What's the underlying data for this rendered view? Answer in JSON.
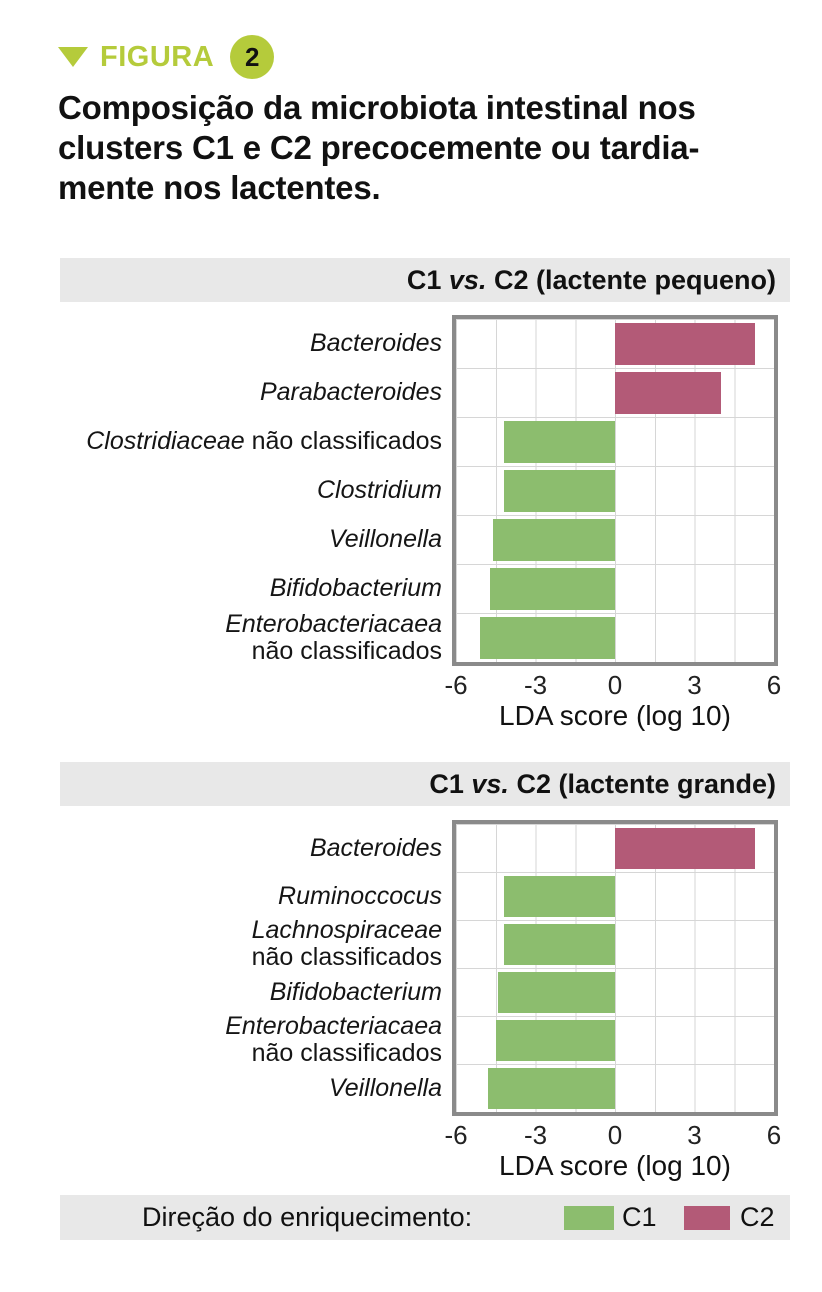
{
  "figure": {
    "kicker": "FIGURA",
    "number": "2",
    "title_lines": [
      "Composição da microbiota intestinal nos",
      "clusters C1 e C2 precocemente ou tardia-",
      "mente nos lactentes."
    ]
  },
  "colors": {
    "accent_lime": "#b5cb3b",
    "c1_green": "#8cbd6e",
    "c2_magenta": "#b35a77",
    "banner_gray": "#e8e8e8",
    "frame_gray": "#8a8a8a",
    "grid_gray": "#d6d6d6"
  },
  "legend": {
    "label": "Direção do enriquecimento:",
    "items": [
      {
        "label": "C1",
        "color": "#8cbd6e"
      },
      {
        "label": "C2",
        "color": "#b35a77"
      }
    ]
  },
  "chart_data": [
    {
      "type": "bar",
      "orientation": "horizontal",
      "title": "C1 vs. C2 (lactente pequeno)",
      "title_parts": [
        "C1 ",
        "vs.",
        " C2 (lactente pequeno)"
      ],
      "categories": [
        "Bacteroides",
        "Parabacteroides",
        "Clostridiaceae não classificados",
        "Clostridium",
        "Veillonella",
        "Bifidobacterium",
        "Enterobacteriacaea não classificados"
      ],
      "category_format": [
        {
          "italic": "Bacteroides",
          "regular": "",
          "two_line": false
        },
        {
          "italic": "Parabacteroides",
          "regular": "",
          "two_line": false
        },
        {
          "italic": "Clostridiaceae",
          "regular": " não classificados",
          "two_line": false
        },
        {
          "italic": "Clostridium",
          "regular": "",
          "two_line": false
        },
        {
          "italic": "Veillonella",
          "regular": "",
          "two_line": false
        },
        {
          "italic": "Bifidobacterium",
          "regular": "",
          "two_line": false
        },
        {
          "italic": "Enterobacteriacaea",
          "regular": "não classificados",
          "two_line": true
        }
      ],
      "values": [
        5.3,
        4.0,
        -4.2,
        -4.2,
        -4.6,
        -4.7,
        -5.1
      ],
      "groups": [
        "C2",
        "C2",
        "C1",
        "C1",
        "C1",
        "C1",
        "C1"
      ],
      "xlabel": "LDA score (log 10)",
      "xlim": [
        -6,
        6
      ],
      "xticks": [
        -6,
        -3,
        0,
        3,
        6
      ],
      "grid": true,
      "legend_position": "none"
    },
    {
      "type": "bar",
      "orientation": "horizontal",
      "title": "C1 vs. C2 (lactente grande)",
      "title_parts": [
        "C1 ",
        "vs.",
        " C2 (lactente grande)"
      ],
      "categories": [
        "Bacteroides",
        "Ruminoccocus",
        "Lachnospiraceae não classificados",
        "Bifidobacterium",
        "Enterobacteriacaea não classificados",
        "Veillonella"
      ],
      "category_format": [
        {
          "italic": "Bacteroides",
          "regular": "",
          "two_line": false
        },
        {
          "italic": "Ruminoccocus",
          "regular": "",
          "two_line": false
        },
        {
          "italic": "Lachnospiraceae",
          "regular": "não classificados",
          "two_line": true
        },
        {
          "italic": "Bifidobacterium",
          "regular": "",
          "two_line": false
        },
        {
          "italic": "Enterobacteriacaea",
          "regular": "não classificados",
          "two_line": true
        },
        {
          "italic": "Veillonella",
          "regular": "",
          "two_line": false
        }
      ],
      "values": [
        5.3,
        -4.2,
        -4.2,
        -4.4,
        -4.5,
        -4.8
      ],
      "groups": [
        "C2",
        "C1",
        "C1",
        "C1",
        "C1",
        "C1"
      ],
      "xlabel": "LDA score (log 10)",
      "xlim": [
        -6,
        6
      ],
      "xticks": [
        -6,
        -3,
        0,
        3,
        6
      ],
      "grid": true,
      "legend_position": "none"
    }
  ]
}
